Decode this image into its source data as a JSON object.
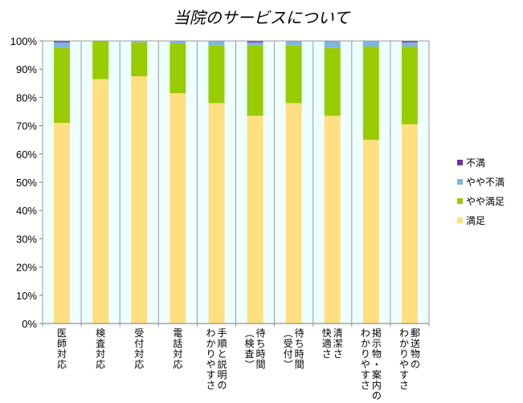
{
  "chart_data": {
    "type": "bar",
    "stacked": true,
    "percent": true,
    "title": "当院のサービスについて",
    "categories": [
      "医師対応",
      "検査対応",
      "受付対応",
      "電話対応",
      "手順と説明のわかりやすさ",
      "待ち時間（検査）",
      "待ち時間（受付）",
      "清潔さ快適さ",
      "掲示物・案内のわかりやすさ",
      "郵送物のわかりやすさ"
    ],
    "category_lines": [
      [
        "医師対応"
      ],
      [
        "検査対応"
      ],
      [
        "受付対応"
      ],
      [
        "電話対応"
      ],
      [
        "手順と説明の",
        "わかりやすさ"
      ],
      [
        "待ち時間",
        "（検査）"
      ],
      [
        "待ち時間",
        "（受付）"
      ],
      [
        "清潔さ",
        "快適さ"
      ],
      [
        "掲示物・案内の",
        "わかりやすさ"
      ],
      [
        "郵送物の",
        "わかりやすさ"
      ]
    ],
    "series": [
      {
        "name": "満足",
        "color": "#FFDF80",
        "values": [
          71,
          86.5,
          87.5,
          81.5,
          78,
          73.5,
          78,
          73.5,
          65,
          70.5
        ]
      },
      {
        "name": "やや満足",
        "color": "#99CC00",
        "values": [
          26.5,
          13.5,
          12,
          17.5,
          20.5,
          25,
          20.5,
          24,
          33,
          27.5
        ]
      },
      {
        "name": "やや不満",
        "color": "#7FB5E0",
        "values": [
          2,
          0,
          0.5,
          1,
          1.5,
          1,
          1.5,
          2.5,
          2,
          1.5
        ]
      },
      {
        "name": "不満",
        "color": "#7030A0",
        "values": [
          0.5,
          0,
          0,
          0,
          0,
          0.5,
          0,
          0,
          0,
          0.5
        ]
      }
    ],
    "ylim": [
      0,
      100
    ],
    "yticks": [
      "0%",
      "10%",
      "20%",
      "30%",
      "40%",
      "50%",
      "60%",
      "70%",
      "80%",
      "90%",
      "100%"
    ],
    "plot_background": "#EEFFFF",
    "grid": false,
    "legend_position": "right",
    "legend_order": [
      "不満",
      "やや不満",
      "やや満足",
      "満足"
    ]
  }
}
